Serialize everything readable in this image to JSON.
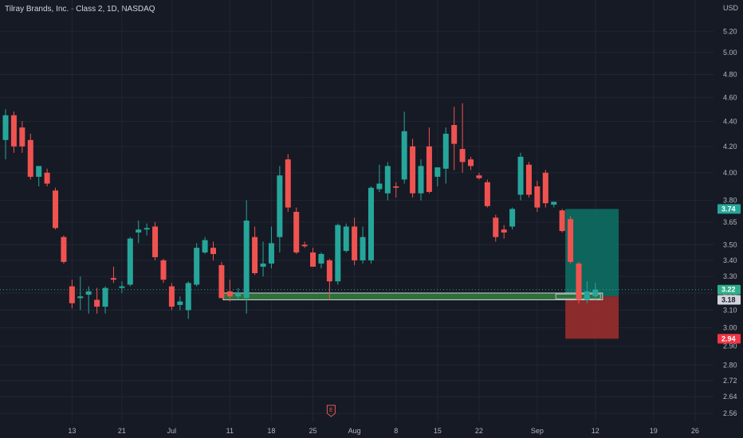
{
  "header": {
    "symbol_title": "Tilray Brands, Inc. - Class 2, 1D, NASDAQ",
    "currency": "USD"
  },
  "earnings_marker": {
    "label": "E",
    "date": "Jul 29"
  },
  "colors": {
    "background": "#161a25",
    "up": "#26a69a",
    "down": "#ef5350",
    "profit_zone": "#0d6e63",
    "loss_zone": "#a12f2e",
    "support_zone": "#2f6f3a",
    "last_price_badge": "#2fae88",
    "target_badge": "#26a69a",
    "stop_badge": "#f23645",
    "entry_badge": "#d1d4dc"
  },
  "price_labels": {
    "target": "3.74",
    "last": "3.22",
    "entry": "3.18",
    "stop": "2.94"
  },
  "trade_setup": {
    "entry": 3.18,
    "target": 3.74,
    "stop": 2.94,
    "start_date": "Sep 6",
    "end_date": "Sep 14"
  },
  "support_zone": {
    "low": 3.16,
    "high": 3.2,
    "start_date": "Jul 10",
    "end_date": "Sep 12"
  },
  "chart_data": {
    "type": "candlestick",
    "title": "Tilray Brands, Inc. - Class 2, 1D, NASDAQ",
    "y_scale": "log",
    "ylim": [
      2.53,
      5.35
    ],
    "y_ticks": [
      "5.20",
      "5.00",
      "4.80",
      "4.60",
      "4.40",
      "4.20",
      "4.00",
      "3.80",
      "3.65",
      "3.50",
      "3.40",
      "3.30",
      "3.20",
      "3.10",
      "3.00",
      "2.90",
      "2.80",
      "2.72",
      "2.64",
      "2.56"
    ],
    "x_ticks": [
      "13",
      "21",
      "Jul",
      "11",
      "18",
      "25",
      "Aug",
      "8",
      "15",
      "22",
      "Sep",
      "12",
      "19",
      "26"
    ],
    "grid": true,
    "series": [
      {
        "values": [
          {
            "date": "Jun 3",
            "open": 4.25,
            "high": 4.5,
            "low": 4.1,
            "close": 4.45
          },
          {
            "date": "Jun 4",
            "open": 4.45,
            "high": 4.48,
            "low": 4.15,
            "close": 4.2
          },
          {
            "date": "Jun 5",
            "open": 4.35,
            "high": 4.4,
            "low": 4.15,
            "close": 4.2
          },
          {
            "date": "Jun 6",
            "open": 4.25,
            "high": 4.3,
            "low": 3.95,
            "close": 3.97
          },
          {
            "date": "Jun 7",
            "open": 3.97,
            "high": 4.02,
            "low": 3.9,
            "close": 4.05
          },
          {
            "date": "Jun 10",
            "open": 4.0,
            "high": 4.03,
            "low": 3.9,
            "close": 3.92
          },
          {
            "date": "Jun 11",
            "open": 3.87,
            "high": 3.89,
            "low": 3.6,
            "close": 3.61
          },
          {
            "date": "Jun 12",
            "open": 3.55,
            "high": 3.56,
            "low": 3.38,
            "close": 3.39
          },
          {
            "date": "Jun 13",
            "open": 3.24,
            "high": 3.28,
            "low": 3.11,
            "close": 3.14
          },
          {
            "date": "Jun 14",
            "open": 3.17,
            "high": 3.3,
            "low": 3.1,
            "close": 3.18
          },
          {
            "date": "Jun 17",
            "open": 3.19,
            "high": 3.24,
            "low": 3.08,
            "close": 3.21
          },
          {
            "date": "Jun 18",
            "open": 3.16,
            "high": 3.23,
            "low": 3.08,
            "close": 3.12
          },
          {
            "date": "Jun 19",
            "open": 3.12,
            "high": 3.24,
            "low": 3.08,
            "close": 3.23
          },
          {
            "date": "Jun 20",
            "open": 3.29,
            "high": 3.36,
            "low": 3.26,
            "close": 3.28
          },
          {
            "date": "Jun 21",
            "open": 3.23,
            "high": 3.27,
            "low": 3.2,
            "close": 3.24
          },
          {
            "date": "Jun 24",
            "open": 3.25,
            "high": 3.55,
            "low": 3.24,
            "close": 3.54
          },
          {
            "date": "Jun 25",
            "open": 3.58,
            "high": 3.66,
            "low": 3.51,
            "close": 3.6
          },
          {
            "date": "Jun 26",
            "open": 3.6,
            "high": 3.64,
            "low": 3.56,
            "close": 3.61
          },
          {
            "date": "Jun 27",
            "open": 3.62,
            "high": 3.65,
            "low": 3.4,
            "close": 3.42
          },
          {
            "date": "Jun 28",
            "open": 3.4,
            "high": 3.41,
            "low": 3.26,
            "close": 3.28
          },
          {
            "date": "Jul 1",
            "open": 3.24,
            "high": 3.26,
            "low": 3.1,
            "close": 3.12
          },
          {
            "date": "Jul 2",
            "open": 3.13,
            "high": 3.18,
            "low": 3.1,
            "close": 3.15
          },
          {
            "date": "Jul 3",
            "open": 3.1,
            "high": 3.27,
            "low": 3.05,
            "close": 3.26
          },
          {
            "date": "Jul 5",
            "open": 3.25,
            "high": 3.51,
            "low": 3.24,
            "close": 3.48
          },
          {
            "date": "Jul 8",
            "open": 3.45,
            "high": 3.55,
            "low": 3.44,
            "close": 3.53
          },
          {
            "date": "Jul 9",
            "open": 3.48,
            "high": 3.52,
            "low": 3.4,
            "close": 3.44
          },
          {
            "date": "Jul 10",
            "open": 3.37,
            "high": 3.39,
            "low": 3.17,
            "close": 3.17
          },
          {
            "date": "Jul 11",
            "open": 3.21,
            "high": 3.28,
            "low": 3.15,
            "close": 3.18
          },
          {
            "date": "Jul 12",
            "open": 3.18,
            "high": 3.23,
            "low": 3.16,
            "close": 3.2
          },
          {
            "date": "Jul 15",
            "open": 3.17,
            "high": 3.8,
            "low": 3.08,
            "close": 3.66
          },
          {
            "date": "Jul 16",
            "open": 3.55,
            "high": 3.62,
            "low": 3.31,
            "close": 3.32
          },
          {
            "date": "Jul 17",
            "open": 3.36,
            "high": 3.52,
            "low": 3.3,
            "close": 3.38
          },
          {
            "date": "Jul 18",
            "open": 3.38,
            "high": 3.62,
            "low": 3.35,
            "close": 3.51
          },
          {
            "date": "Jul 19",
            "open": 3.55,
            "high": 4.05,
            "low": 3.45,
            "close": 3.98
          },
          {
            "date": "Jul 22",
            "open": 4.1,
            "high": 4.14,
            "low": 3.72,
            "close": 3.75
          },
          {
            "date": "Jul 23",
            "open": 3.72,
            "high": 3.75,
            "low": 3.44,
            "close": 3.45
          },
          {
            "date": "Jul 24",
            "open": 3.5,
            "high": 3.52,
            "low": 3.48,
            "close": 3.49
          },
          {
            "date": "Jul 25",
            "open": 3.45,
            "high": 3.48,
            "low": 3.38,
            "close": 3.36
          },
          {
            "date": "Jul 26",
            "open": 3.38,
            "high": 3.45,
            "low": 3.35,
            "close": 3.44
          },
          {
            "date": "Jul 29",
            "open": 3.4,
            "high": 3.41,
            "low": 3.16,
            "close": 3.27
          },
          {
            "date": "Jul 30",
            "open": 3.27,
            "high": 3.64,
            "low": 3.25,
            "close": 3.63
          },
          {
            "date": "Jul 31",
            "open": 3.46,
            "high": 3.64,
            "low": 3.45,
            "close": 3.62
          },
          {
            "date": "Aug 1",
            "open": 3.62,
            "high": 3.68,
            "low": 3.37,
            "close": 3.4
          },
          {
            "date": "Aug 2",
            "open": 3.4,
            "high": 3.62,
            "low": 3.38,
            "close": 3.55
          },
          {
            "date": "Aug 5",
            "open": 3.4,
            "high": 3.9,
            "low": 3.38,
            "close": 3.89
          },
          {
            "date": "Aug 6",
            "open": 3.88,
            "high": 4.06,
            "low": 3.86,
            "close": 3.92
          },
          {
            "date": "Aug 7",
            "open": 3.85,
            "high": 4.08,
            "low": 3.8,
            "close": 4.05
          },
          {
            "date": "Aug 8",
            "open": 3.9,
            "high": 3.93,
            "low": 3.82,
            "close": 3.89
          },
          {
            "date": "Aug 9",
            "open": 3.95,
            "high": 4.48,
            "low": 3.92,
            "close": 4.32
          },
          {
            "date": "Aug 12",
            "open": 4.2,
            "high": 4.26,
            "low": 3.82,
            "close": 3.85
          },
          {
            "date": "Aug 13",
            "open": 3.85,
            "high": 4.1,
            "low": 3.8,
            "close": 4.05
          },
          {
            "date": "Aug 14",
            "open": 4.2,
            "high": 4.35,
            "low": 3.85,
            "close": 3.86
          },
          {
            "date": "Aug 15",
            "open": 3.97,
            "high": 4.03,
            "low": 3.9,
            "close": 4.04
          },
          {
            "date": "Aug 16",
            "open": 4.03,
            "high": 4.35,
            "low": 3.92,
            "close": 4.3
          },
          {
            "date": "Aug 19",
            "open": 4.37,
            "high": 4.52,
            "low": 4.02,
            "close": 4.22
          },
          {
            "date": "Aug 20",
            "open": 4.18,
            "high": 4.55,
            "low": 4.0,
            "close": 4.08
          },
          {
            "date": "Aug 21",
            "open": 4.1,
            "high": 4.12,
            "low": 4.02,
            "close": 4.05
          },
          {
            "date": "Aug 22",
            "open": 3.98,
            "high": 4.0,
            "low": 3.95,
            "close": 3.96
          },
          {
            "date": "Aug 23",
            "open": 3.93,
            "high": 3.95,
            "low": 3.75,
            "close": 3.76
          },
          {
            "date": "Aug 26",
            "open": 3.68,
            "high": 3.7,
            "low": 3.52,
            "close": 3.55
          },
          {
            "date": "Aug 27",
            "open": 3.6,
            "high": 3.63,
            "low": 3.54,
            "close": 3.58
          },
          {
            "date": "Aug 28",
            "open": 3.62,
            "high": 3.75,
            "low": 3.6,
            "close": 3.74
          },
          {
            "date": "Aug 29",
            "open": 3.84,
            "high": 4.15,
            "low": 3.8,
            "close": 4.12
          },
          {
            "date": "Aug 30",
            "open": 4.06,
            "high": 4.08,
            "low": 3.82,
            "close": 3.84
          },
          {
            "date": "Sep 3",
            "open": 3.9,
            "high": 3.94,
            "low": 3.72,
            "close": 3.75
          },
          {
            "date": "Sep 4",
            "open": 4.0,
            "high": 4.02,
            "low": 3.75,
            "close": 3.78
          },
          {
            "date": "Sep 5",
            "open": 3.77,
            "high": 3.79,
            "low": 3.75,
            "close": 3.79
          },
          {
            "date": "Sep 6",
            "open": 3.73,
            "high": 3.74,
            "low": 3.58,
            "close": 3.59
          },
          {
            "date": "Sep 9",
            "open": 3.67,
            "high": 3.69,
            "low": 3.38,
            "close": 3.39
          },
          {
            "date": "Sep 10",
            "open": 3.38,
            "high": 3.39,
            "low": 3.14,
            "close": 3.16
          },
          {
            "date": "Sep 11",
            "open": 3.16,
            "high": 3.27,
            "low": 3.14,
            "close": 3.21
          },
          {
            "date": "Sep 12",
            "open": 3.18,
            "high": 3.26,
            "low": 3.16,
            "close": 3.22
          }
        ]
      }
    ]
  }
}
